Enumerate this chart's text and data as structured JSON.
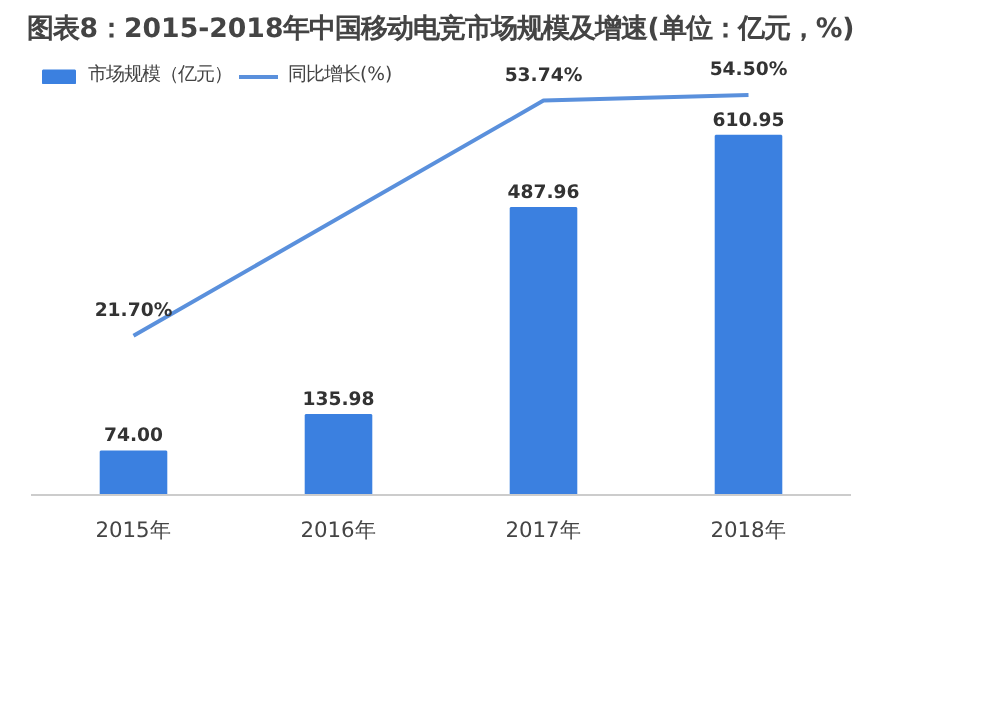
{
  "chart_data": {
    "type": "bar",
    "title": "图表8：2015-2018年中国移动电竞市场规模及增速(单位：亿元，%)",
    "categories": [
      "2015年",
      "2016年",
      "2017年",
      "2018年"
    ],
    "series": [
      {
        "name": "市场规模（亿元）",
        "color": "#3b80e0",
        "values": [
          74.0,
          135.98,
          487.96,
          610.95
        ],
        "value_labels": [
          "74.00",
          "135.98",
          "487.96",
          "610.95"
        ]
      },
      {
        "name": "同比增长(%)",
        "type": "line",
        "axis": "y2",
        "color": "#5a90dc",
        "values": [
          21.7,
          null,
          53.74,
          54.5
        ],
        "value_labels": [
          "21.70%",
          null,
          "53.74%",
          "54.50%"
        ]
      }
    ],
    "tick_labels": "x",
    "grid": false,
    "legend": "top left"
  }
}
